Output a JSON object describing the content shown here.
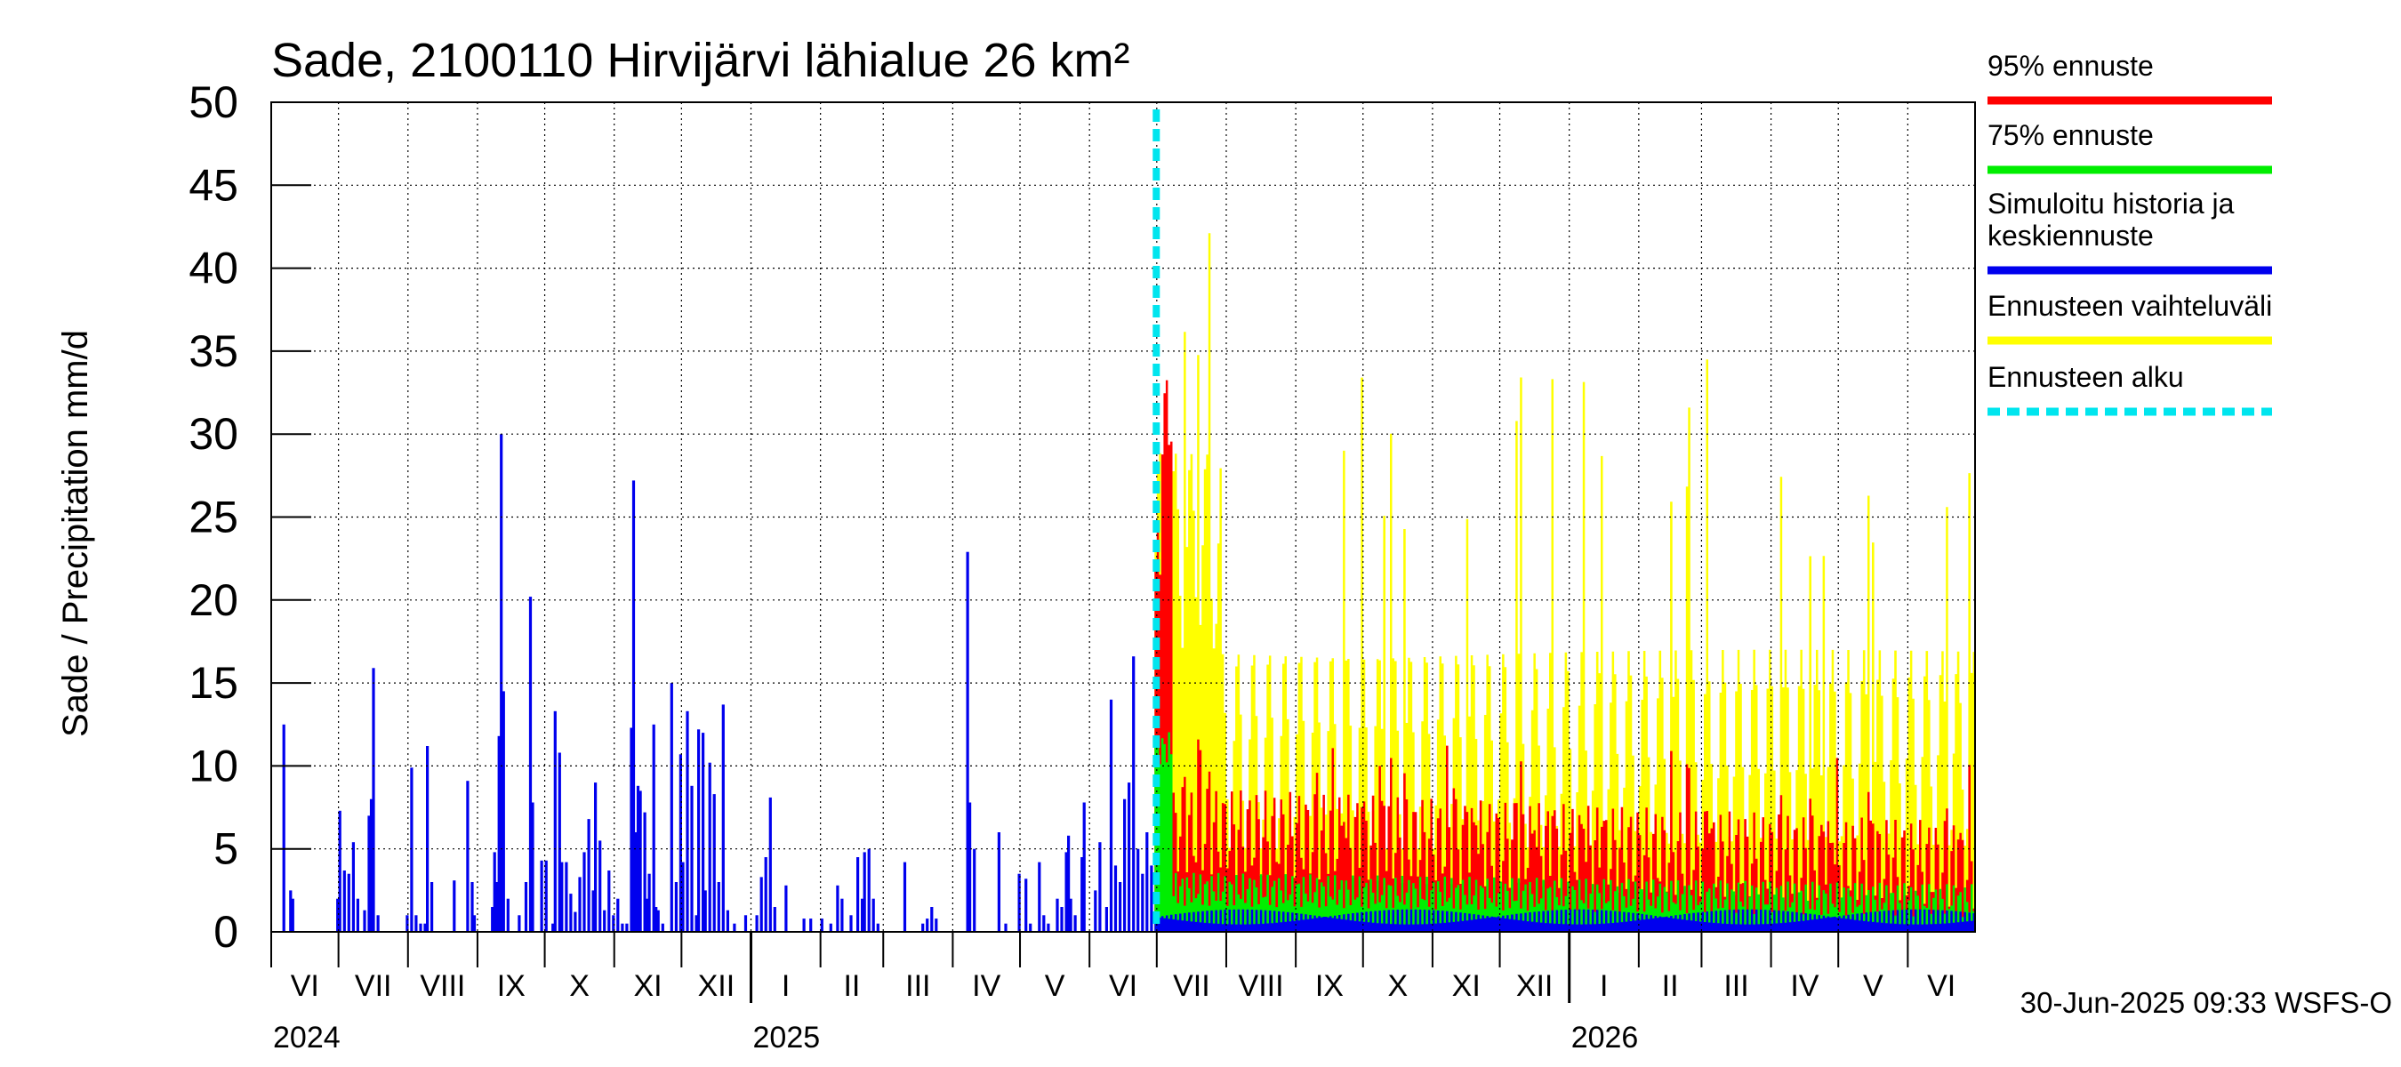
{
  "chart_data": {
    "type": "bar",
    "title": "Sade, 2100110 Hirvijärvi lähialue 26 km²",
    "ylabel": "Sade / Precipitation   mm/d",
    "ylim": [
      0,
      50
    ],
    "yticks": [
      0,
      5,
      10,
      15,
      20,
      25,
      30,
      35,
      40,
      45,
      50
    ],
    "x_range": [
      "2024-06-01",
      "2026-06-30"
    ],
    "forecast_start": "2025-06-30",
    "footer": "30-Jun-2025 09:33 WSFS-O",
    "grid": true,
    "legend_position": "right",
    "months": [
      {
        "label": "VI",
        "start": "2024-06-01"
      },
      {
        "label": "VII",
        "start": "2024-07-01"
      },
      {
        "label": "VIII",
        "start": "2024-08-01"
      },
      {
        "label": "IX",
        "start": "2024-09-01"
      },
      {
        "label": "X",
        "start": "2024-10-01"
      },
      {
        "label": "XI",
        "start": "2024-11-01"
      },
      {
        "label": "XII",
        "start": "2024-12-01"
      },
      {
        "label": "I",
        "start": "2025-01-01"
      },
      {
        "label": "II",
        "start": "2025-02-01"
      },
      {
        "label": "III",
        "start": "2025-03-01"
      },
      {
        "label": "IV",
        "start": "2025-04-01"
      },
      {
        "label": "V",
        "start": "2025-05-01"
      },
      {
        "label": "VI",
        "start": "2025-06-01"
      },
      {
        "label": "VII",
        "start": "2025-07-01"
      },
      {
        "label": "VIII",
        "start": "2025-08-01"
      },
      {
        "label": "IX",
        "start": "2025-09-01"
      },
      {
        "label": "X",
        "start": "2025-10-01"
      },
      {
        "label": "XI",
        "start": "2025-11-01"
      },
      {
        "label": "XII",
        "start": "2025-12-01"
      },
      {
        "label": "I",
        "start": "2026-01-01"
      },
      {
        "label": "II",
        "start": "2026-02-01"
      },
      {
        "label": "III",
        "start": "2026-03-01"
      },
      {
        "label": "IV",
        "start": "2026-04-01"
      },
      {
        "label": "V",
        "start": "2026-05-01"
      },
      {
        "label": "VI",
        "start": "2026-06-01"
      }
    ],
    "years": [
      {
        "label": "2024",
        "at": "2024-06-01"
      },
      {
        "label": "2025",
        "at": "2025-01-01"
      },
      {
        "label": "2026",
        "at": "2026-01-01"
      }
    ],
    "legend": [
      {
        "label": "95% ennuste",
        "color": "#ff0000",
        "style": "solid"
      },
      {
        "label": "75% ennuste",
        "color": "#00ee00",
        "style": "solid"
      },
      {
        "label": "Simuloitu historia ja keskiennuste",
        "color": "#0000ee",
        "style": "solid"
      },
      {
        "label": "Ennusteen vaihteluväli",
        "color": "#ffff00",
        "style": "solid"
      },
      {
        "label": "Ennusteen alku",
        "color": "#00e5ee",
        "style": "dashed"
      }
    ],
    "series": [
      {
        "name": "Simuloitu historia ja keskiennuste",
        "color": "#0000ee",
        "values": [
          [
            "2024-06-06",
            12.5
          ],
          [
            "2024-06-09",
            2.5
          ],
          [
            "2024-06-10",
            2.0
          ],
          [
            "2024-06-30",
            2.0
          ],
          [
            "2024-07-01",
            7.3
          ],
          [
            "2024-07-03",
            3.7
          ],
          [
            "2024-07-05",
            3.5
          ],
          [
            "2024-07-07",
            5.4
          ],
          [
            "2024-07-09",
            2.0
          ],
          [
            "2024-07-12",
            1.3
          ],
          [
            "2024-07-14",
            7.0
          ],
          [
            "2024-07-15",
            8.0
          ],
          [
            "2024-07-16",
            15.9
          ],
          [
            "2024-07-18",
            1.0
          ],
          [
            "2024-07-31",
            1.0
          ],
          [
            "2024-08-02",
            9.9
          ],
          [
            "2024-08-04",
            1.0
          ],
          [
            "2024-08-06",
            0.5
          ],
          [
            "2024-08-08",
            0.5
          ],
          [
            "2024-08-09",
            11.2
          ],
          [
            "2024-08-11",
            3.0
          ],
          [
            "2024-08-21",
            3.1
          ],
          [
            "2024-08-27",
            9.1
          ],
          [
            "2024-08-29",
            3.0
          ],
          [
            "2024-08-30",
            1.0
          ],
          [
            "2024-09-07",
            1.5
          ],
          [
            "2024-09-08",
            4.8
          ],
          [
            "2024-09-09",
            3.0
          ],
          [
            "2024-09-10",
            11.8
          ],
          [
            "2024-09-11",
            30.0
          ],
          [
            "2024-09-12",
            14.5
          ],
          [
            "2024-09-14",
            2.0
          ],
          [
            "2024-09-19",
            1.0
          ],
          [
            "2024-09-22",
            3.0
          ],
          [
            "2024-09-24",
            20.2
          ],
          [
            "2024-09-25",
            7.8
          ],
          [
            "2024-09-29",
            4.3
          ],
          [
            "2024-10-01",
            4.3
          ],
          [
            "2024-10-04",
            0.5
          ],
          [
            "2024-10-05",
            13.3
          ],
          [
            "2024-10-07",
            10.8
          ],
          [
            "2024-10-08",
            4.2
          ],
          [
            "2024-10-10",
            4.2
          ],
          [
            "2024-10-12",
            2.3
          ],
          [
            "2024-10-14",
            1.2
          ],
          [
            "2024-10-16",
            3.3
          ],
          [
            "2024-10-18",
            4.8
          ],
          [
            "2024-10-20",
            6.8
          ],
          [
            "2024-10-22",
            2.5
          ],
          [
            "2024-10-23",
            9.0
          ],
          [
            "2024-10-25",
            5.5
          ],
          [
            "2024-10-27",
            1.3
          ],
          [
            "2024-10-29",
            3.7
          ],
          [
            "2024-10-31",
            1.0
          ],
          [
            "2024-11-02",
            2.0
          ],
          [
            "2024-11-04",
            0.5
          ],
          [
            "2024-11-06",
            0.5
          ],
          [
            "2024-11-08",
            12.3
          ],
          [
            "2024-11-09",
            27.2
          ],
          [
            "2024-11-10",
            6.0
          ],
          [
            "2024-11-11",
            8.8
          ],
          [
            "2024-11-12",
            8.5
          ],
          [
            "2024-11-14",
            7.2
          ],
          [
            "2024-11-15",
            2.0
          ],
          [
            "2024-11-16",
            3.5
          ],
          [
            "2024-11-18",
            12.5
          ],
          [
            "2024-11-19",
            1.5
          ],
          [
            "2024-11-20",
            1.3
          ],
          [
            "2024-11-22",
            0.5
          ],
          [
            "2024-11-26",
            15.0
          ],
          [
            "2024-11-28",
            3.0
          ],
          [
            "2024-11-30",
            10.7
          ],
          [
            "2024-12-01",
            4.2
          ],
          [
            "2024-12-03",
            13.3
          ],
          [
            "2024-12-05",
            8.8
          ],
          [
            "2024-12-07",
            1.0
          ],
          [
            "2024-12-08",
            12.2
          ],
          [
            "2024-12-10",
            12.0
          ],
          [
            "2024-12-11",
            2.5
          ],
          [
            "2024-12-13",
            10.2
          ],
          [
            "2024-12-15",
            8.3
          ],
          [
            "2024-12-17",
            3.0
          ],
          [
            "2024-12-19",
            13.7
          ],
          [
            "2024-12-21",
            1.3
          ],
          [
            "2024-12-24",
            0.5
          ],
          [
            "2024-12-29",
            1.0
          ],
          [
            "2025-01-03",
            1.0
          ],
          [
            "2025-01-05",
            3.3
          ],
          [
            "2025-01-07",
            4.5
          ],
          [
            "2025-01-09",
            8.1
          ],
          [
            "2025-01-11",
            1.5
          ],
          [
            "2025-01-16",
            2.8
          ],
          [
            "2025-01-24",
            0.8
          ],
          [
            "2025-01-27",
            0.8
          ],
          [
            "2025-02-01",
            0.8
          ],
          [
            "2025-02-05",
            0.5
          ],
          [
            "2025-02-08",
            2.8
          ],
          [
            "2025-02-10",
            2.0
          ],
          [
            "2025-02-14",
            1.0
          ],
          [
            "2025-02-17",
            4.5
          ],
          [
            "2025-02-19",
            2.0
          ],
          [
            "2025-02-20",
            4.8
          ],
          [
            "2025-02-22",
            5.0
          ],
          [
            "2025-02-24",
            2.0
          ],
          [
            "2025-02-26",
            0.5
          ],
          [
            "2025-03-10",
            4.2
          ],
          [
            "2025-03-18",
            0.5
          ],
          [
            "2025-03-20",
            0.8
          ],
          [
            "2025-03-22",
            1.5
          ],
          [
            "2025-03-24",
            0.8
          ],
          [
            "2025-04-07",
            22.9
          ],
          [
            "2025-04-08",
            7.8
          ],
          [
            "2025-04-10",
            5.0
          ],
          [
            "2025-04-21",
            6.0
          ],
          [
            "2025-04-24",
            0.5
          ],
          [
            "2025-04-30",
            3.5
          ],
          [
            "2025-05-03",
            3.2
          ],
          [
            "2025-05-05",
            0.5
          ],
          [
            "2025-05-09",
            4.2
          ],
          [
            "2025-05-11",
            1.0
          ],
          [
            "2025-05-13",
            0.5
          ],
          [
            "2025-05-17",
            2.0
          ],
          [
            "2025-05-19",
            1.5
          ],
          [
            "2025-05-21",
            4.8
          ],
          [
            "2025-05-22",
            5.8
          ],
          [
            "2025-05-23",
            2.0
          ],
          [
            "2025-05-25",
            1.0
          ],
          [
            "2025-05-28",
            4.5
          ],
          [
            "2025-05-29",
            7.8
          ],
          [
            "2025-06-03",
            2.5
          ],
          [
            "2025-06-05",
            5.4
          ],
          [
            "2025-06-08",
            1.5
          ],
          [
            "2025-06-10",
            14.0
          ],
          [
            "2025-06-12",
            4.0
          ],
          [
            "2025-06-14",
            3.0
          ],
          [
            "2025-06-16",
            8.0
          ],
          [
            "2025-06-18",
            9.0
          ],
          [
            "2025-06-20",
            16.6
          ],
          [
            "2025-06-22",
            5.0
          ],
          [
            "2025-06-24",
            3.5
          ],
          [
            "2025-06-26",
            6.0
          ],
          [
            "2025-06-28",
            4.0
          ]
        ]
      }
    ]
  }
}
